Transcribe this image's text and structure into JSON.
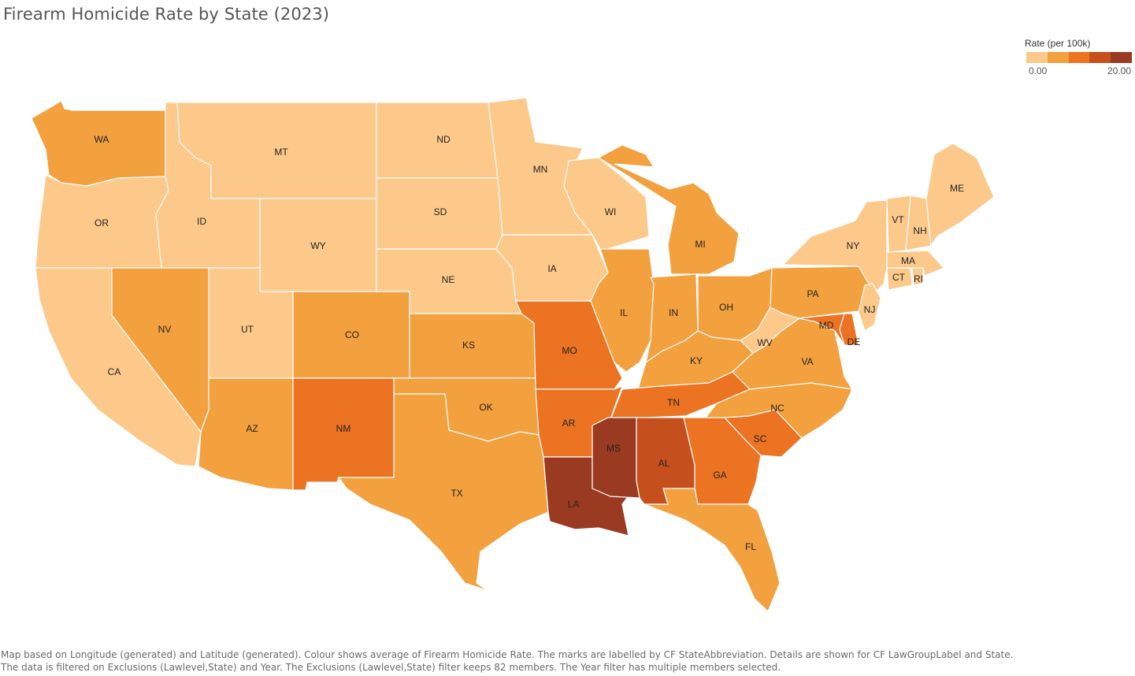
{
  "title": "Firearm Homicide Rate by State (2023)",
  "legend": {
    "title": "Rate (per 100k)",
    "min_label": "0.00",
    "max_label": "20.00",
    "colors": [
      "#fdc98a",
      "#f3a03f",
      "#ec7322",
      "#c5501e",
      "#9a3a21"
    ]
  },
  "footnote": "Map based on Longitude (generated) and Latitude (generated).  Colour shows average of Firearm Homicide Rate.  The marks are labelled by CF StateAbbreviation.  Details are shown for CF LawGroupLabel and State. The data is filtered on Exclusions (Lawlevel,State) and Year. The Exclusions (Lawlevel,State) filter keeps 82 members. The Year filter has multiple members selected.",
  "states": [
    {
      "abbr": "WA",
      "color_level": 1
    },
    {
      "abbr": "OR",
      "color_level": 0
    },
    {
      "abbr": "CA",
      "color_level": 0
    },
    {
      "abbr": "ID",
      "color_level": 0
    },
    {
      "abbr": "NV",
      "color_level": 1
    },
    {
      "abbr": "MT",
      "color_level": 0
    },
    {
      "abbr": "WY",
      "color_level": 0
    },
    {
      "abbr": "UT",
      "color_level": 0
    },
    {
      "abbr": "AZ",
      "color_level": 1
    },
    {
      "abbr": "CO",
      "color_level": 1
    },
    {
      "abbr": "NM",
      "color_level": 2
    },
    {
      "abbr": "ND",
      "color_level": 0
    },
    {
      "abbr": "SD",
      "color_level": 0
    },
    {
      "abbr": "NE",
      "color_level": 0
    },
    {
      "abbr": "KS",
      "color_level": 1
    },
    {
      "abbr": "OK",
      "color_level": 1
    },
    {
      "abbr": "TX",
      "color_level": 1
    },
    {
      "abbr": "MN",
      "color_level": 0
    },
    {
      "abbr": "IA",
      "color_level": 0
    },
    {
      "abbr": "MO",
      "color_level": 2
    },
    {
      "abbr": "AR",
      "color_level": 2
    },
    {
      "abbr": "LA",
      "color_level": 4
    },
    {
      "abbr": "WI",
      "color_level": 0
    },
    {
      "abbr": "IL",
      "color_level": 1
    },
    {
      "abbr": "MI",
      "color_level": 1
    },
    {
      "abbr": "IN",
      "color_level": 1
    },
    {
      "abbr": "OH",
      "color_level": 1
    },
    {
      "abbr": "KY",
      "color_level": 1
    },
    {
      "abbr": "TN",
      "color_level": 2
    },
    {
      "abbr": "MS",
      "color_level": 4
    },
    {
      "abbr": "AL",
      "color_level": 3
    },
    {
      "abbr": "GA",
      "color_level": 2
    },
    {
      "abbr": "FL",
      "color_level": 1
    },
    {
      "abbr": "SC",
      "color_level": 2
    },
    {
      "abbr": "NC",
      "color_level": 1
    },
    {
      "abbr": "VA",
      "color_level": 1
    },
    {
      "abbr": "WV",
      "color_level": 0
    },
    {
      "abbr": "PA",
      "color_level": 1
    },
    {
      "abbr": "NY",
      "color_level": 0
    },
    {
      "abbr": "MD",
      "color_level": 2
    },
    {
      "abbr": "DE",
      "color_level": 2
    },
    {
      "abbr": "NJ",
      "color_level": 0
    },
    {
      "abbr": "CT",
      "color_level": 0
    },
    {
      "abbr": "RI",
      "color_level": 0
    },
    {
      "abbr": "MA",
      "color_level": 0
    },
    {
      "abbr": "VT",
      "color_level": 0
    },
    {
      "abbr": "NH",
      "color_level": 0
    },
    {
      "abbr": "ME",
      "color_level": 0
    }
  ]
}
